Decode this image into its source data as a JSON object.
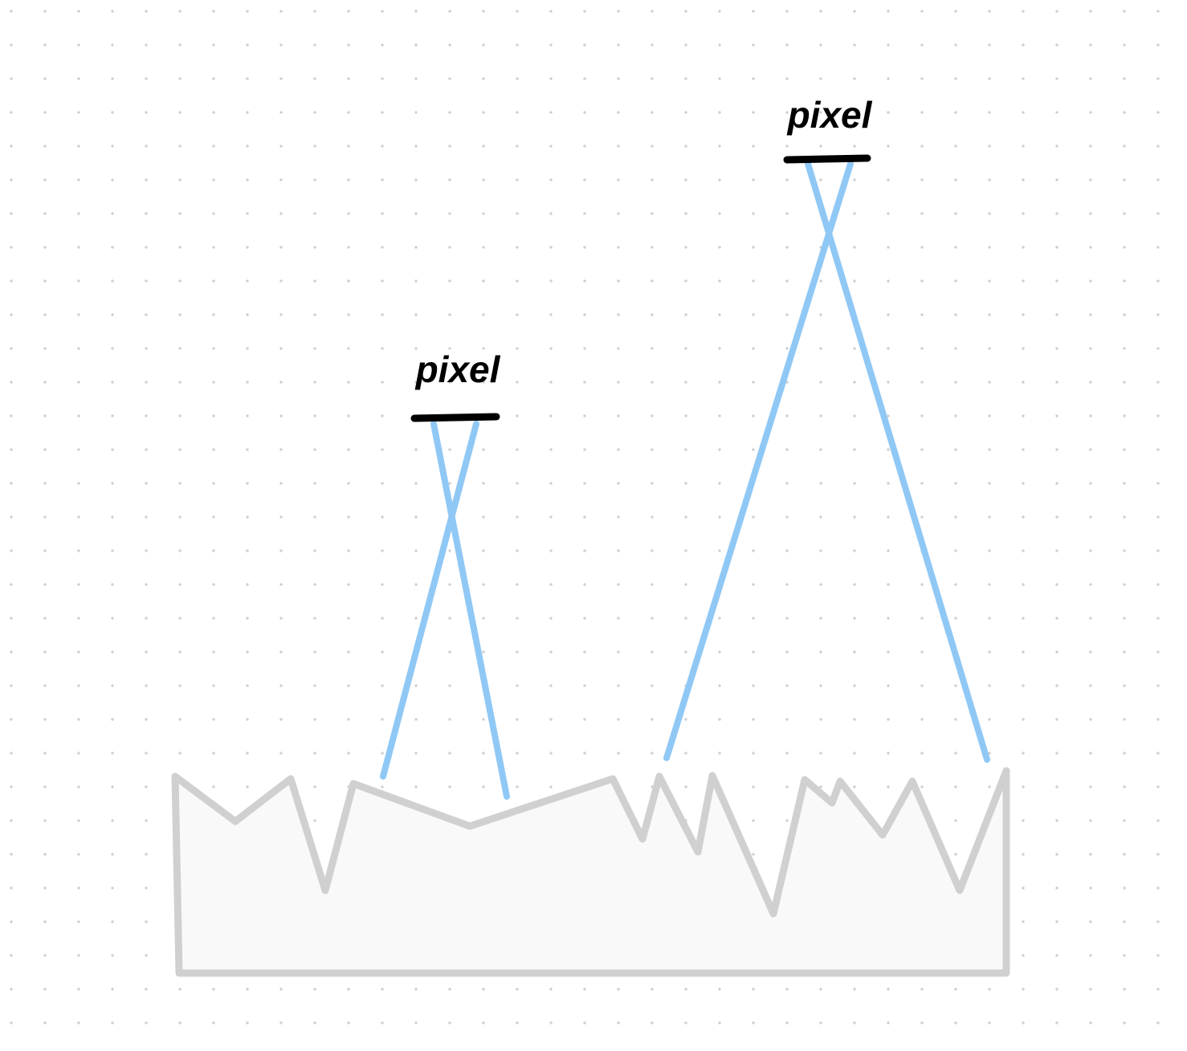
{
  "labels": {
    "sensor_near": "pixel",
    "sensor_far": "pixel"
  },
  "colors": {
    "background": "#ffffff",
    "grid_dot": "#cfcfcf",
    "surface_stroke": "#d0d0d0",
    "surface_fill": "#f9f9f9",
    "ray": "#90c8f5",
    "pixel_bar": "#000000"
  }
}
